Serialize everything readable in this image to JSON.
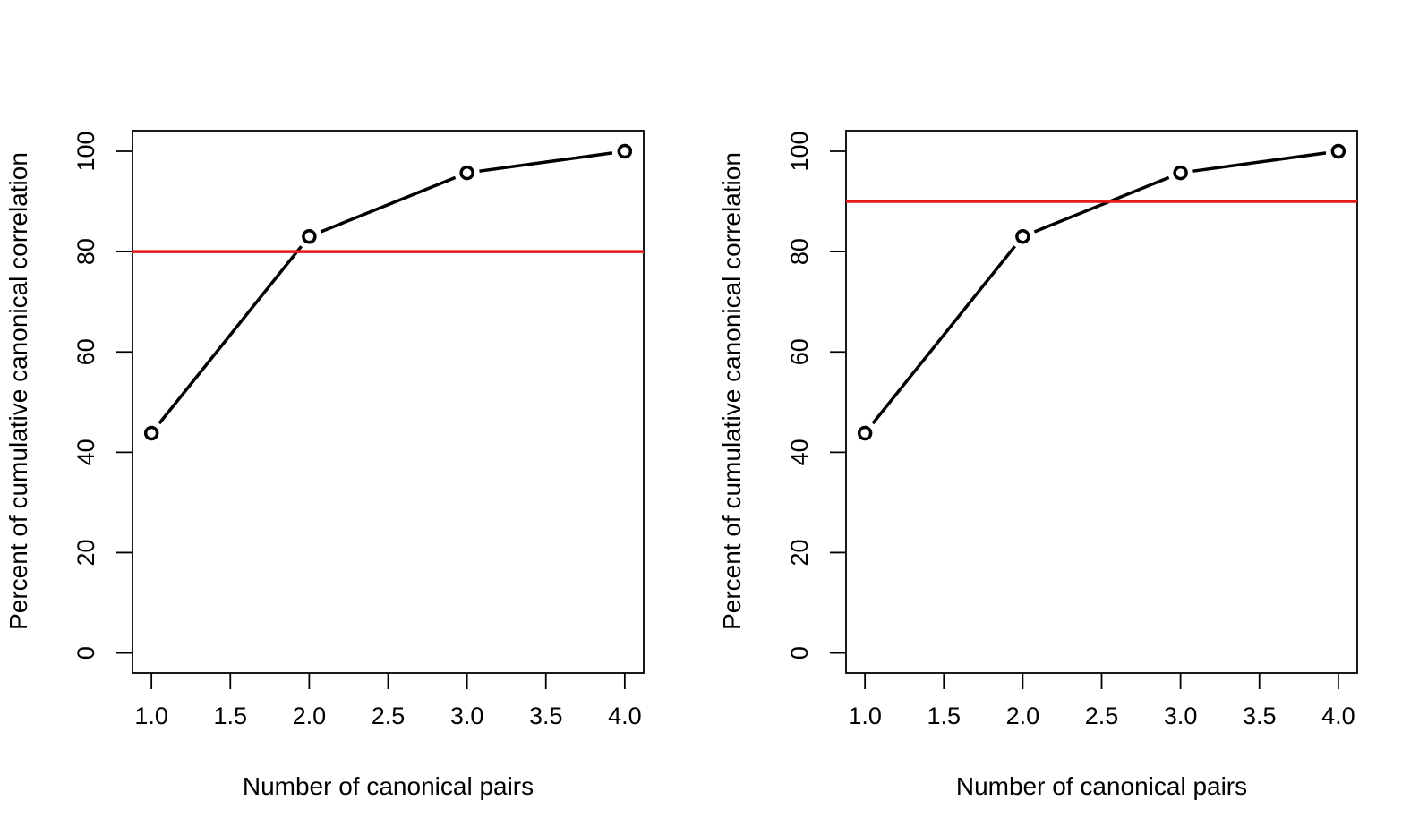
{
  "colors": {
    "series": "#000000",
    "threshold": "#e41a1c",
    "frame": "#000000"
  },
  "chart_data": [
    {
      "type": "line",
      "xlabel": "Number of canonical pairs",
      "ylabel": "Percent of cumulative canonical correlation",
      "x": [
        1,
        2,
        3,
        4
      ],
      "series": [
        {
          "values": [
            43.8,
            83.0,
            95.7,
            100.0
          ]
        }
      ],
      "threshold": 80,
      "xlim": [
        0.88,
        4.12
      ],
      "ylim": [
        -4,
        104.1
      ],
      "xticks": [
        "1.0",
        "1.5",
        "2.0",
        "2.5",
        "3.0",
        "3.5",
        "4.0"
      ],
      "yticks": [
        "0",
        "20",
        "40",
        "60",
        "80",
        "100"
      ],
      "grid": false,
      "legend": "none"
    },
    {
      "type": "line",
      "xlabel": "Number of canonical pairs",
      "ylabel": "Percent of cumulative canonical correlation",
      "x": [
        1,
        2,
        3,
        4
      ],
      "series": [
        {
          "values": [
            43.8,
            83.0,
            95.7,
            100.0
          ]
        }
      ],
      "threshold": 90,
      "xlim": [
        0.88,
        4.12
      ],
      "ylim": [
        -4,
        104.1
      ],
      "xticks": [
        "1.0",
        "1.5",
        "2.0",
        "2.5",
        "3.0",
        "3.5",
        "4.0"
      ],
      "yticks": [
        "0",
        "20",
        "40",
        "60",
        "80",
        "100"
      ],
      "grid": false,
      "legend": "none"
    }
  ]
}
